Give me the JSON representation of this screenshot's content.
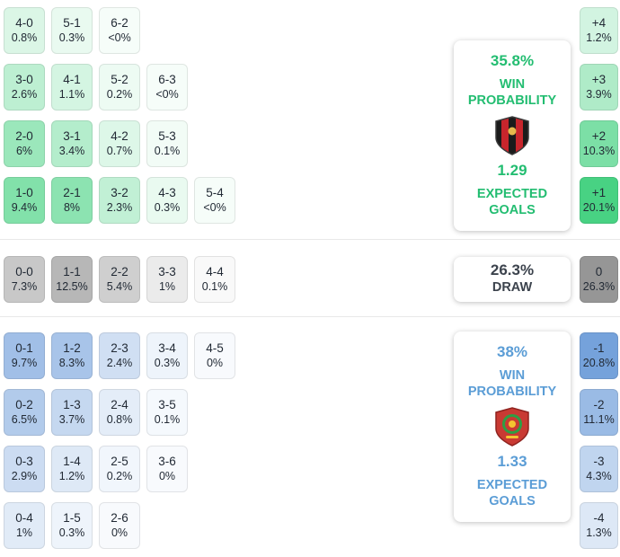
{
  "chart_data": {
    "type": "heatmap",
    "sections": [
      {
        "id": "home",
        "rows": [
          [
            {
              "score": "4-0",
              "pct": "0.8%",
              "value": 0.8
            },
            {
              "score": "5-1",
              "pct": "0.3%",
              "value": 0.3
            },
            {
              "score": "6-2",
              "pct": "<0%",
              "value": 0.05
            }
          ],
          [
            {
              "score": "3-0",
              "pct": "2.6%",
              "value": 2.6
            },
            {
              "score": "4-1",
              "pct": "1.1%",
              "value": 1.1
            },
            {
              "score": "5-2",
              "pct": "0.2%",
              "value": 0.2
            },
            {
              "score": "6-3",
              "pct": "<0%",
              "value": 0.05
            }
          ],
          [
            {
              "score": "2-0",
              "pct": "6%",
              "value": 6
            },
            {
              "score": "3-1",
              "pct": "3.4%",
              "value": 3.4
            },
            {
              "score": "4-2",
              "pct": "0.7%",
              "value": 0.7
            },
            {
              "score": "5-3",
              "pct": "0.1%",
              "value": 0.1
            }
          ],
          [
            {
              "score": "1-0",
              "pct": "9.4%",
              "value": 9.4
            },
            {
              "score": "2-1",
              "pct": "8%",
              "value": 8
            },
            {
              "score": "3-2",
              "pct": "2.3%",
              "value": 2.3
            },
            {
              "score": "4-3",
              "pct": "0.3%",
              "value": 0.3
            },
            {
              "score": "5-4",
              "pct": "<0%",
              "value": 0.05
            }
          ]
        ]
      },
      {
        "id": "draw",
        "rows": [
          [
            {
              "score": "0-0",
              "pct": "7.3%",
              "value": 7.3
            },
            {
              "score": "1-1",
              "pct": "12.5%",
              "value": 12.5
            },
            {
              "score": "2-2",
              "pct": "5.4%",
              "value": 5.4
            },
            {
              "score": "3-3",
              "pct": "1%",
              "value": 1
            },
            {
              "score": "4-4",
              "pct": "0.1%",
              "value": 0.1
            }
          ]
        ]
      },
      {
        "id": "away",
        "rows": [
          [
            {
              "score": "0-1",
              "pct": "9.7%",
              "value": 9.7
            },
            {
              "score": "1-2",
              "pct": "8.3%",
              "value": 8.3
            },
            {
              "score": "2-3",
              "pct": "2.4%",
              "value": 2.4
            },
            {
              "score": "3-4",
              "pct": "0.3%",
              "value": 0.3
            },
            {
              "score": "4-5",
              "pct": "0%",
              "value": 0.05
            }
          ],
          [
            {
              "score": "0-2",
              "pct": "6.5%",
              "value": 6.5
            },
            {
              "score": "1-3",
              "pct": "3.7%",
              "value": 3.7
            },
            {
              "score": "2-4",
              "pct": "0.8%",
              "value": 0.8
            },
            {
              "score": "3-5",
              "pct": "0.1%",
              "value": 0.1
            }
          ],
          [
            {
              "score": "0-3",
              "pct": "2.9%",
              "value": 2.9
            },
            {
              "score": "1-4",
              "pct": "1.2%",
              "value": 1.2
            },
            {
              "score": "2-5",
              "pct": "0.2%",
              "value": 0.2
            },
            {
              "score": "3-6",
              "pct": "0%",
              "value": 0.05
            }
          ],
          [
            {
              "score": "0-4",
              "pct": "1%",
              "value": 1
            },
            {
              "score": "1-5",
              "pct": "0.3%",
              "value": 0.3
            },
            {
              "score": "2-6",
              "pct": "0%",
              "value": 0.05
            }
          ]
        ]
      }
    ],
    "goal_margins": [
      {
        "margin": "+4",
        "pct": "1.2%",
        "value": 1.2
      },
      {
        "margin": "+3",
        "pct": "3.9%",
        "value": 3.9
      },
      {
        "margin": "+2",
        "pct": "10.3%",
        "value": 10.3
      },
      {
        "margin": "+1",
        "pct": "20.1%",
        "value": 20.1
      },
      {
        "margin": "0",
        "pct": "26.3%",
        "value": 26.3
      },
      {
        "margin": "-1",
        "pct": "20.8%",
        "value": 20.8
      },
      {
        "margin": "-2",
        "pct": "11.1%",
        "value": 11.1
      },
      {
        "margin": "-3",
        "pct": "4.3%",
        "value": 4.3
      },
      {
        "margin": "-4",
        "pct": "1.3%",
        "value": 1.3
      }
    ],
    "summary": {
      "home": {
        "win_probability": "35.8%",
        "win_label": "WIN PROBABILITY",
        "expected_goals": "1.29",
        "expected_goals_label": "EXPECTED GOALS",
        "accent": "#23bd71"
      },
      "draw": {
        "probability": "26.3%",
        "label": "DRAW",
        "accent": "#3c434d"
      },
      "away": {
        "win_probability": "38%",
        "win_label": "WIN PROBABILITY",
        "expected_goals": "1.33",
        "expected_goals_label": "EXPECTED GOALS",
        "accent": "#5b9dd6"
      }
    },
    "colors": {
      "home": "#2ecc71",
      "draw": "#969696",
      "away": "#6496d7"
    }
  }
}
